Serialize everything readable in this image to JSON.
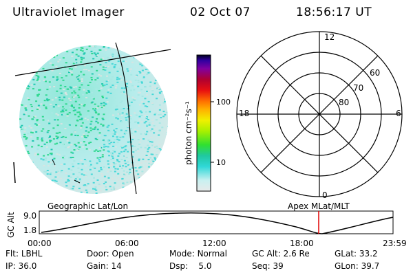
{
  "header": {
    "instrument": "Ultraviolet Imager",
    "date": "02 Oct 07",
    "time": "18:56:17 UT"
  },
  "colorbar": {
    "unit_label": "photon cm⁻²s⁻¹",
    "ticks": [
      "100",
      "10"
    ]
  },
  "polar_plot": {
    "mlt_labels": {
      "top": "12",
      "left": "18",
      "right": "6",
      "bottom": "0"
    },
    "lat_labels": [
      "60",
      "70",
      "80"
    ]
  },
  "altitude_plot": {
    "ylabel": "GC Alt",
    "yticks": [
      "9.0",
      "1.8"
    ],
    "left_caption": "Geographic Lat/Lon",
    "right_caption": "Apex MLat/MLT",
    "xticks": [
      "00:00",
      "06:00",
      "12:00",
      "18:00",
      "23:59"
    ],
    "marker_color": "#e00000"
  },
  "status": {
    "row1": [
      {
        "label": "Flt:",
        "value": "LBHL"
      },
      {
        "label": "Door:",
        "value": "Open"
      },
      {
        "label": "Mode:",
        "value": "Normal"
      },
      {
        "label": "GC Alt:",
        "value": "2.6 Re"
      },
      {
        "label": "GLat:",
        "value": "33.2"
      }
    ],
    "row2": [
      {
        "label": "IP:",
        "value": "36.0"
      },
      {
        "label": "Gain:",
        "value": "14"
      },
      {
        "label": "Dsp:",
        "value": "5.0"
      },
      {
        "label": "Seq:",
        "value": "39"
      },
      {
        "label": "GLon:",
        "value": "39.7"
      }
    ]
  }
}
